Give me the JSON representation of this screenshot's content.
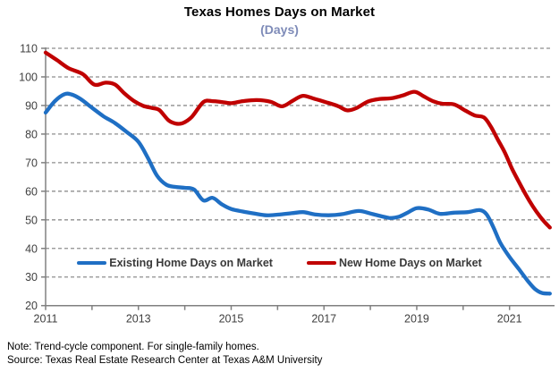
{
  "title": "Texas Homes Days on Market",
  "subtitle": "(Days)",
  "notes": [
    "Note: Trend-cycle component. For single-family homes.",
    "Source: Texas Real Estate Research Center at Texas A&M University"
  ],
  "colors": {
    "subtitle": "#7E8BB8",
    "grid": "#8E8E8E",
    "axis": "#808080",
    "tick_label": "#404040",
    "legend_text": "#3A3A3A",
    "existing_line": "#1F6FC4",
    "new_line": "#C00000"
  },
  "chart_data": {
    "type": "line",
    "title": "Texas Homes Days on Market",
    "subtitle": "(Days)",
    "xlabel": "",
    "ylabel": "Days",
    "ylim": [
      20,
      110
    ],
    "y_ticks": [
      110,
      100,
      90,
      80,
      70,
      60,
      50,
      40,
      30,
      20
    ],
    "x_ticks_all": [
      2011,
      2012,
      2013,
      2014,
      2015,
      2016,
      2017,
      2018,
      2019,
      2020,
      2021
    ],
    "x_tick_labels": [
      "2011",
      "2013",
      "2015",
      "2017",
      "2019",
      "2021"
    ],
    "x_labeled_years": [
      2011,
      2013,
      2015,
      2017,
      2019,
      2021
    ],
    "xlim": [
      2011,
      2021.92
    ],
    "grid": "horizontal-dashed",
    "legend_position": "inside-lower-center",
    "series": [
      {
        "name": "Existing Home Days on Market",
        "color": "#1F6FC4",
        "points": [
          [
            2011.0,
            87.5
          ],
          [
            2011.2,
            91.5
          ],
          [
            2011.4,
            93.9
          ],
          [
            2011.55,
            93.9
          ],
          [
            2011.75,
            92.3
          ],
          [
            2012.0,
            89.2
          ],
          [
            2012.25,
            86.2
          ],
          [
            2012.5,
            83.8
          ],
          [
            2012.75,
            80.7
          ],
          [
            2013.0,
            77.3
          ],
          [
            2013.2,
            71.8
          ],
          [
            2013.4,
            65.5
          ],
          [
            2013.6,
            62.3
          ],
          [
            2013.8,
            61.5
          ],
          [
            2014.0,
            61.2
          ],
          [
            2014.2,
            60.6
          ],
          [
            2014.4,
            56.8
          ],
          [
            2014.6,
            57.7
          ],
          [
            2014.8,
            55.4
          ],
          [
            2015.0,
            53.8
          ],
          [
            2015.25,
            52.9
          ],
          [
            2015.5,
            52.2
          ],
          [
            2015.75,
            51.6
          ],
          [
            2016.0,
            51.8
          ],
          [
            2016.3,
            52.3
          ],
          [
            2016.55,
            52.7
          ],
          [
            2016.8,
            51.9
          ],
          [
            2017.1,
            51.6
          ],
          [
            2017.4,
            52.0
          ],
          [
            2017.75,
            53.1
          ],
          [
            2018.05,
            52.0
          ],
          [
            2018.4,
            50.7
          ],
          [
            2018.6,
            51.0
          ],
          [
            2018.8,
            52.5
          ],
          [
            2019.0,
            54.1
          ],
          [
            2019.25,
            53.6
          ],
          [
            2019.5,
            52.1
          ],
          [
            2019.8,
            52.5
          ],
          [
            2020.1,
            52.7
          ],
          [
            2020.35,
            53.4
          ],
          [
            2020.5,
            52.0
          ],
          [
            2020.65,
            47.5
          ],
          [
            2020.8,
            42.0
          ],
          [
            2021.0,
            37.0
          ],
          [
            2021.2,
            32.8
          ],
          [
            2021.4,
            28.5
          ],
          [
            2021.55,
            25.8
          ],
          [
            2021.7,
            24.4
          ],
          [
            2021.87,
            24.2
          ]
        ]
      },
      {
        "name": "New Home Days on Market",
        "color": "#C00000",
        "points": [
          [
            2011.0,
            108.5
          ],
          [
            2011.25,
            105.8
          ],
          [
            2011.5,
            103.0
          ],
          [
            2011.8,
            101.0
          ],
          [
            2012.05,
            97.3
          ],
          [
            2012.3,
            98.0
          ],
          [
            2012.5,
            97.3
          ],
          [
            2012.7,
            94.2
          ],
          [
            2012.9,
            91.6
          ],
          [
            2013.1,
            89.9
          ],
          [
            2013.3,
            89.1
          ],
          [
            2013.45,
            88.4
          ],
          [
            2013.65,
            84.8
          ],
          [
            2013.8,
            83.7
          ],
          [
            2013.95,
            83.8
          ],
          [
            2014.15,
            86.0
          ],
          [
            2014.4,
            91.2
          ],
          [
            2014.6,
            91.5
          ],
          [
            2014.8,
            91.2
          ],
          [
            2015.0,
            90.8
          ],
          [
            2015.25,
            91.5
          ],
          [
            2015.55,
            91.9
          ],
          [
            2015.85,
            91.3
          ],
          [
            2016.1,
            89.7
          ],
          [
            2016.35,
            91.9
          ],
          [
            2016.55,
            93.4
          ],
          [
            2016.8,
            92.3
          ],
          [
            2017.05,
            91.1
          ],
          [
            2017.3,
            89.8
          ],
          [
            2017.5,
            88.3
          ],
          [
            2017.7,
            89.1
          ],
          [
            2017.95,
            91.4
          ],
          [
            2018.2,
            92.3
          ],
          [
            2018.45,
            92.5
          ],
          [
            2018.7,
            93.5
          ],
          [
            2018.95,
            94.8
          ],
          [
            2019.15,
            93.2
          ],
          [
            2019.35,
            91.5
          ],
          [
            2019.55,
            90.6
          ],
          [
            2019.8,
            90.4
          ],
          [
            2020.05,
            88.2
          ],
          [
            2020.25,
            86.5
          ],
          [
            2020.45,
            85.8
          ],
          [
            2020.6,
            82.5
          ],
          [
            2020.75,
            78.0
          ],
          [
            2020.9,
            73.5
          ],
          [
            2021.05,
            68.0
          ],
          [
            2021.2,
            63.3
          ],
          [
            2021.35,
            58.8
          ],
          [
            2021.5,
            54.8
          ],
          [
            2021.65,
            51.3
          ],
          [
            2021.77,
            49.0
          ],
          [
            2021.87,
            47.3
          ]
        ]
      }
    ]
  }
}
